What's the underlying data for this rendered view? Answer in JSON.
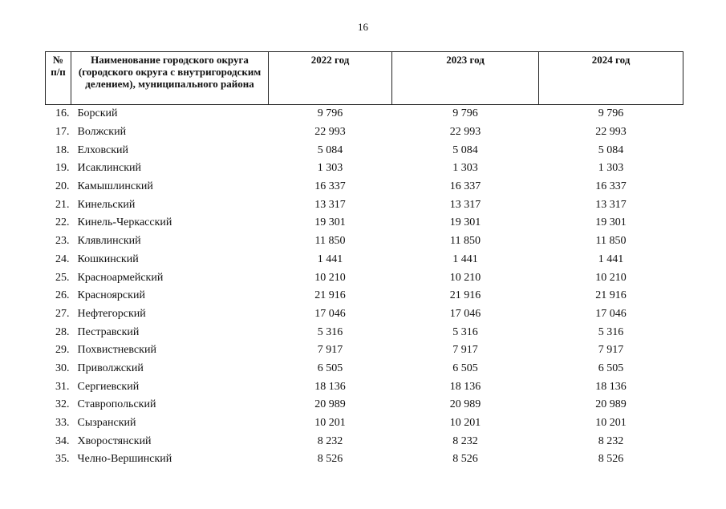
{
  "page_number": "16",
  "table": {
    "headers": {
      "num": "№\nп/п",
      "name": "Наименование городского округа (городского округа с внутригородским делением), муниципального района",
      "y2022": "2022 год",
      "y2023": "2023 год",
      "y2024": "2024 год"
    },
    "rows": [
      {
        "num": "16.",
        "name": "Борский",
        "v2022": "9 796",
        "v2023": "9 796",
        "v2024": "9 796"
      },
      {
        "num": "17.",
        "name": "Волжский",
        "v2022": "22 993",
        "v2023": "22 993",
        "v2024": "22 993"
      },
      {
        "num": "18.",
        "name": "Елховский",
        "v2022": "5 084",
        "v2023": "5 084",
        "v2024": "5 084"
      },
      {
        "num": "19.",
        "name": "Исаклинский",
        "v2022": "1 303",
        "v2023": "1 303",
        "v2024": "1 303"
      },
      {
        "num": "20.",
        "name": "Камышлинский",
        "v2022": "16 337",
        "v2023": "16 337",
        "v2024": "16 337"
      },
      {
        "num": "21.",
        "name": "Кинельский",
        "v2022": "13 317",
        "v2023": "13 317",
        "v2024": "13 317"
      },
      {
        "num": "22.",
        "name": "Кинель-Черкасский",
        "v2022": "19 301",
        "v2023": "19 301",
        "v2024": "19 301"
      },
      {
        "num": "23.",
        "name": "Клявлинский",
        "v2022": "11 850",
        "v2023": "11 850",
        "v2024": "11 850"
      },
      {
        "num": "24.",
        "name": "Кошкинский",
        "v2022": "1 441",
        "v2023": "1 441",
        "v2024": "1 441"
      },
      {
        "num": "25.",
        "name": "Красноармейский",
        "v2022": "10 210",
        "v2023": "10 210",
        "v2024": "10 210"
      },
      {
        "num": "26.",
        "name": "Красноярский",
        "v2022": "21 916",
        "v2023": "21 916",
        "v2024": "21 916"
      },
      {
        "num": "27.",
        "name": "Нефтегорский",
        "v2022": "17 046",
        "v2023": "17 046",
        "v2024": "17 046"
      },
      {
        "num": "28.",
        "name": "Пестравский",
        "v2022": "5 316",
        "v2023": "5 316",
        "v2024": "5 316"
      },
      {
        "num": "29.",
        "name": "Похвистневский",
        "v2022": "7 917",
        "v2023": "7 917",
        "v2024": "7 917"
      },
      {
        "num": "30.",
        "name": "Приволжский",
        "v2022": "6 505",
        "v2023": "6 505",
        "v2024": "6 505"
      },
      {
        "num": "31.",
        "name": "Сергиевский",
        "v2022": "18 136",
        "v2023": "18 136",
        "v2024": "18 136"
      },
      {
        "num": "32.",
        "name": "Ставропольский",
        "v2022": "20 989",
        "v2023": "20 989",
        "v2024": "20 989"
      },
      {
        "num": "33.",
        "name": "Сызранский",
        "v2022": "10 201",
        "v2023": "10 201",
        "v2024": "10 201"
      },
      {
        "num": "34.",
        "name": "Хворостянский",
        "v2022": "8 232",
        "v2023": "8 232",
        "v2024": "8 232"
      },
      {
        "num": "35.",
        "name": "Челно-Вершинский",
        "v2022": "8 526",
        "v2023": "8 526",
        "v2024": "8 526"
      }
    ]
  }
}
